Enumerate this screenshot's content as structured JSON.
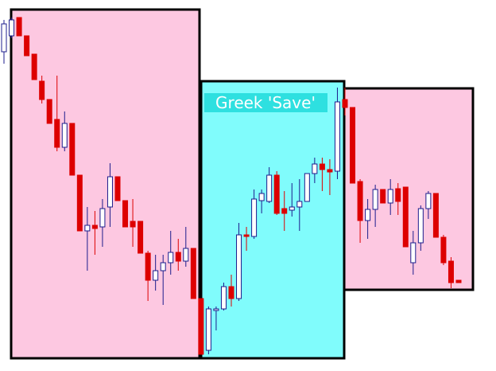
{
  "chart_data": {
    "type": "candlestick",
    "annotation": "Greek 'Save'",
    "up_color": "#1c1c8c",
    "down_color": "#dd0000",
    "open": [
      401,
      421,
      444,
      421,
      398,
      364,
      341,
      316,
      281,
      311,
      246,
      176,
      183,
      181,
      206,
      244,
      214,
      188,
      188,
      148,
      114,
      126,
      136,
      149,
      138,
      154,
      91,
      26,
      76,
      78,
      106,
      91,
      171,
      169,
      214,
      213,
      246,
      204,
      202,
      206,
      213,
      248,
      260,
      253,
      251,
      341,
      331,
      238,
      189,
      203,
      228,
      211,
      229,
      231,
      136,
      161,
      204,
      223,
      168,
      138,
      114
    ],
    "high": [
      441,
      444,
      444,
      421,
      398,
      371,
      341,
      371,
      326,
      311,
      246,
      206,
      201,
      216,
      261,
      244,
      214,
      216,
      188,
      151,
      146,
      146,
      176,
      166,
      181,
      154,
      91,
      81,
      81,
      111,
      121,
      186,
      181,
      228,
      228,
      256,
      251,
      226,
      236,
      241,
      248,
      268,
      268,
      266,
      356,
      356,
      331,
      241,
      216,
      234,
      228,
      241,
      236,
      231,
      176,
      208,
      226,
      223,
      171,
      143,
      114
    ],
    "low": [
      386,
      418,
      421,
      396,
      366,
      336,
      311,
      276,
      276,
      246,
      176,
      126,
      146,
      156,
      181,
      214,
      181,
      156,
      148,
      88,
      101,
      83,
      121,
      126,
      131,
      91,
      21,
      21,
      51,
      76,
      81,
      88,
      151,
      166,
      198,
      211,
      196,
      176,
      194,
      176,
      213,
      236,
      226,
      221,
      241,
      321,
      236,
      161,
      166,
      181,
      211,
      196,
      196,
      156,
      121,
      151,
      191,
      168,
      133,
      104,
      111
    ],
    "close": [
      436,
      441,
      421,
      396,
      366,
      341,
      311,
      281,
      311,
      246,
      176,
      183,
      179,
      204,
      244,
      214,
      181,
      181,
      148,
      114,
      126,
      136,
      149,
      138,
      154,
      91,
      21,
      78,
      78,
      106,
      91,
      171,
      169,
      216,
      223,
      246,
      198,
      198,
      206,
      213,
      248,
      260,
      253,
      250,
      338,
      331,
      236,
      189,
      203,
      228,
      211,
      228,
      213,
      156,
      161,
      204,
      223,
      168,
      136,
      111,
      111
    ]
  }
}
